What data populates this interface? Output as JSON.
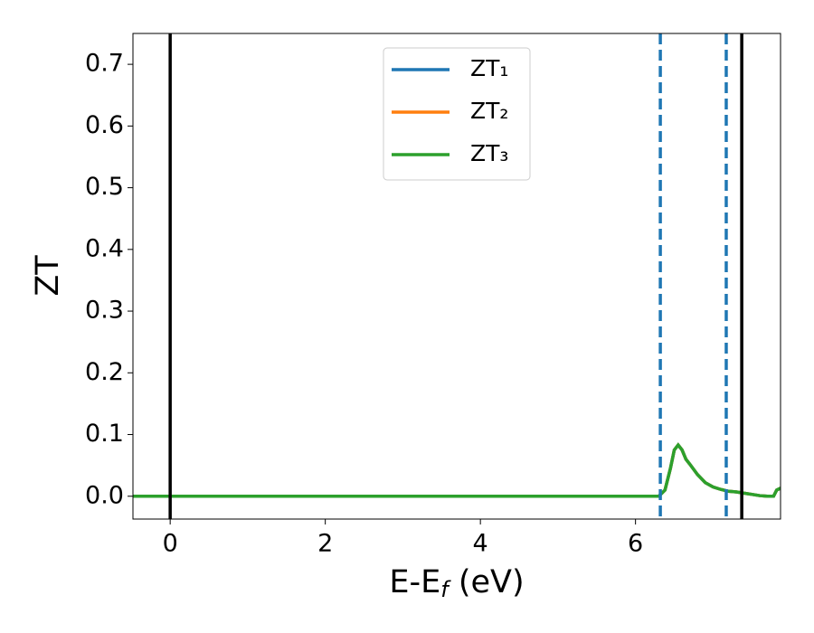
{
  "chart_data": {
    "type": "line",
    "xlabel": [
      "E-E",
      "f",
      " (eV)"
    ],
    "ylabel": "ZT",
    "xlim": [
      -0.48,
      7.87
    ],
    "ylim": [
      -0.037,
      0.75
    ],
    "xticks": [
      0,
      2,
      4,
      6
    ],
    "yticks": [
      {
        "value": 0,
        "label": "0.0"
      },
      0.1,
      0.2,
      0.3,
      0.4,
      0.5,
      0.6,
      0.7
    ],
    "x": [
      -0.48,
      0,
      1,
      2,
      3,
      4,
      5,
      6,
      6.3,
      6.38,
      6.45,
      6.5,
      6.55,
      6.6,
      6.65,
      6.7,
      6.8,
      6.9,
      7.0,
      7.1,
      7.2,
      7.3,
      7.4,
      7.5,
      7.6,
      7.7,
      7.78,
      7.82,
      7.87
    ],
    "series": [
      {
        "name": "ZT₁",
        "color": "#1f77b4",
        "values": [
          0,
          0,
          0,
          0,
          0,
          0,
          0,
          0,
          0,
          0.01,
          0.045,
          0.075,
          0.083,
          0.075,
          0.06,
          0.052,
          0.035,
          0.022,
          0.015,
          0.011,
          0.008,
          0.007,
          0.005,
          0.003,
          0.001,
          0,
          0,
          0.01,
          0.013
        ]
      },
      {
        "name": "ZT₂",
        "color": "#ff7f0e",
        "values": [
          0,
          0,
          0,
          0,
          0,
          0,
          0,
          0,
          0,
          0.01,
          0.045,
          0.075,
          0.083,
          0.075,
          0.06,
          0.052,
          0.035,
          0.022,
          0.015,
          0.011,
          0.008,
          0.007,
          0.005,
          0.003,
          0.001,
          0,
          0,
          0.01,
          0.013
        ]
      },
      {
        "name": "ZT₃",
        "color": "#2ca02c",
        "values": [
          0,
          0,
          0,
          0,
          0,
          0,
          0,
          0,
          0,
          0.01,
          0.045,
          0.075,
          0.083,
          0.075,
          0.06,
          0.052,
          0.035,
          0.022,
          0.015,
          0.011,
          0.008,
          0.007,
          0.005,
          0.003,
          0.001,
          0,
          0,
          0.01,
          0.013
        ]
      }
    ],
    "vlines": [
      {
        "x": 0,
        "color": "#000000",
        "style": "solid"
      },
      {
        "x": 7.37,
        "color": "#000000",
        "style": "solid"
      },
      {
        "x": 6.32,
        "color": "#1f77b4",
        "style": "dashed"
      },
      {
        "x": 7.17,
        "color": "#1f77b4",
        "style": "dashed"
      }
    ],
    "legend": "upper center"
  }
}
